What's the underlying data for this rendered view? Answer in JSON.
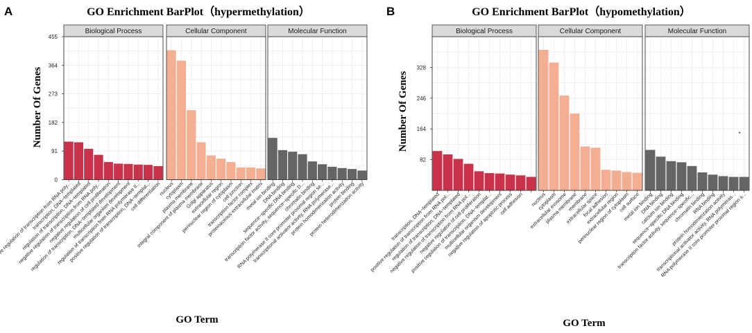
{
  "chart_data": [
    {
      "type": "bar",
      "panel_label": "A",
      "title": "GO Enrichment BarPlot（hypermethylation）",
      "xlabel": "GO Term",
      "ylabel": "Number Of Genes",
      "ylim": [
        0,
        455
      ],
      "yticks": [
        0,
        91,
        182,
        273,
        364,
        455
      ],
      "yticks_labels": [
        "0",
        "91",
        "182",
        "273",
        "364",
        "455"
      ],
      "grid": true,
      "facets": [
        {
          "name": "Biological Process",
          "color": "#c8324a",
          "categories": [
            "positive regulation of transcription from RNA poly...",
            "transcription, DNA−templated",
            "regulation of transcription, DNA−templated",
            "negative regulation of transcription from RNA poly...",
            "negative regulation of cell proliferation",
            "regulation of transcription, DNA−templated development",
            "multicellular organism development",
            "regulation of transcription from RNA polymerase II...",
            "positive regulation of transcription, DNA−templat...",
            "cell differentiation"
          ],
          "values": [
            121,
            119,
            98,
            79,
            56,
            51,
            50,
            48,
            47,
            43
          ]
        },
        {
          "name": "Cellular Component",
          "color": "#f4ae92",
          "categories": [
            "nucleus",
            "cytoplasm",
            "plasma membrane",
            "integral component of plasma membrane",
            "Golgi apparatus",
            "extracellular region",
            "perinuclear region of cytoplasm",
            "cell junction",
            "transcription factor complex",
            "proteinaceous extracellular matrix"
          ],
          "values": [
            412,
            379,
            221,
            119,
            77,
            67,
            56,
            39,
            39,
            36
          ]
        },
        {
          "name": "Molecular Function",
          "color": "#656565",
          "categories": [
            "metal ion binding",
            "DNA binding",
            "sequence−specific DNA binding",
            "transcription factor activity, sequence−specific D...",
            "chromatin binding",
            "RNA polymerase II core promoter proximal region se...",
            "transcriptional activator activity, RNA polymerase...",
            "protein homodimerization activity",
            "protein binding",
            "protein heterodimerization activity"
          ],
          "values": [
            133,
            94,
            89,
            81,
            58,
            49,
            41,
            37,
            34,
            29
          ]
        }
      ]
    },
    {
      "type": "bar",
      "panel_label": "B",
      "title": "GO Enrichment BarPlot（hypomethylation）",
      "xlabel": "GO Term",
      "ylabel": "Number Of Genes",
      "ylim": [
        0,
        410
      ],
      "yticks": [
        82,
        164,
        246,
        328
      ],
      "yticks_labels": [
        "82",
        "164",
        "246",
        "328"
      ],
      "grid": true,
      "annotation": "*",
      "facets": [
        {
          "name": "Biological Process",
          "color": "#c8324a",
          "categories": [
            "transcription, DNA−templated",
            "positive regulation of transcription from RNA pol...",
            "regulation of transcription, DNA−templated",
            "negative regulation of transcription from RNA pol...",
            "negative regulation of cell proliferation",
            "positive regulation of transcription, DNA−templat...",
            "multicellular organism development",
            "negative regulation of apoptotic process",
            "cell adhesion",
            ""
          ],
          "values": [
            105,
            96,
            84,
            71,
            51,
            46,
            45,
            42,
            40,
            36
          ]
        },
        {
          "name": "Cellular Component",
          "color": "#f4ae92",
          "categories": [
            "nucleus",
            "cytoplasm",
            "extracellular exosome",
            "plasma membrane",
            "membrane",
            "extracellular space",
            "focal adhesion",
            "extracellular region",
            "perinuclear region of cytoplasm",
            "cell surface"
          ],
          "values": [
            375,
            341,
            253,
            205,
            117,
            114,
            55,
            53,
            49,
            47
          ]
        },
        {
          "name": "Molecular Function",
          "color": "#656565",
          "categories": [
            "metal ion binding",
            "DNA binding",
            "calcium ion binding",
            "sequence−specific DNA binding",
            "transcription factor activity, sequence−specific...",
            "chromatin binding",
            "RNA binding",
            "protein homodimerization activity",
            "transcriptional activator activity, RNA polymeras...",
            "RNA polymerase II core promoter proximal region s..."
          ],
          "values": [
            108,
            90,
            78,
            75,
            65,
            48,
            42,
            38,
            36,
            36
          ]
        }
      ]
    }
  ]
}
